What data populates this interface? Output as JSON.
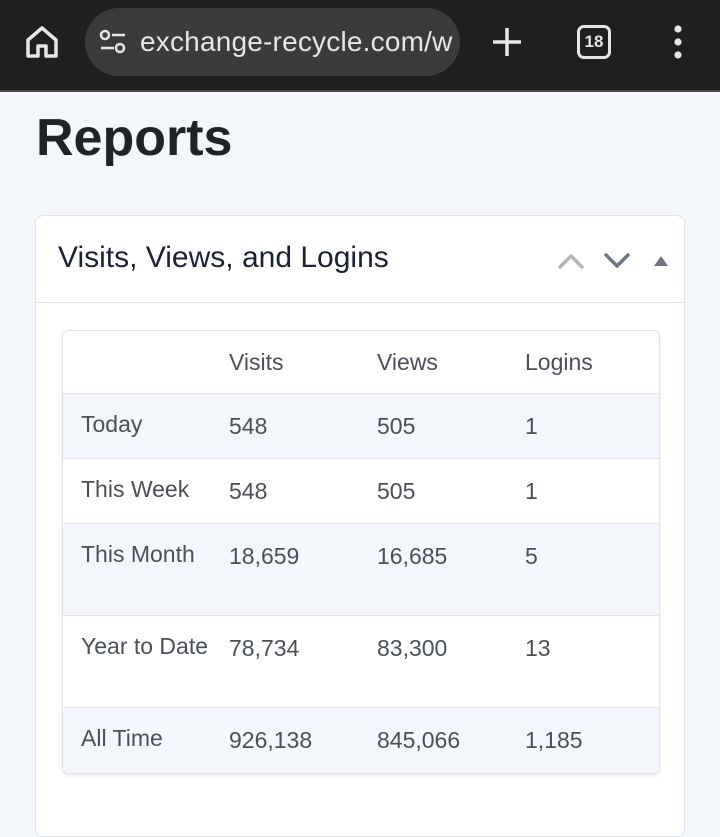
{
  "browser": {
    "url": "exchange-recycle.com/w",
    "tab_count": "18",
    "icons": [
      "home-icon",
      "site-settings-icon",
      "plus-icon",
      "tab-switcher-icon",
      "more-vert-icon"
    ]
  },
  "page": {
    "title": "Reports"
  },
  "panel": {
    "title": "Visits, Views, and Logins",
    "icons": [
      "chevron-up-icon",
      "chevron-down-icon",
      "collapse-triangle-icon"
    ]
  },
  "table": {
    "headers": [
      "",
      "Visits",
      "Views",
      "Logins"
    ],
    "rows": [
      {
        "label": "Today",
        "visits": "548",
        "views": "505",
        "logins": "1"
      },
      {
        "label": "This Week",
        "visits": "548",
        "views": "505",
        "logins": "1"
      },
      {
        "label": "This Month",
        "visits": "18,659",
        "views": "16,685",
        "logins": "5"
      },
      {
        "label": "Year to Date",
        "visits": "78,734",
        "views": "83,300",
        "logins": "13"
      },
      {
        "label": "All Time",
        "visits": "926,138",
        "views": "845,066",
        "logins": "1,185"
      }
    ]
  },
  "colors": {
    "browser_bar": "#1e1f1f",
    "url_pill": "#3b3b3b",
    "page_bg": "#f3f6fa",
    "row_shade": "#f3f6fa"
  }
}
